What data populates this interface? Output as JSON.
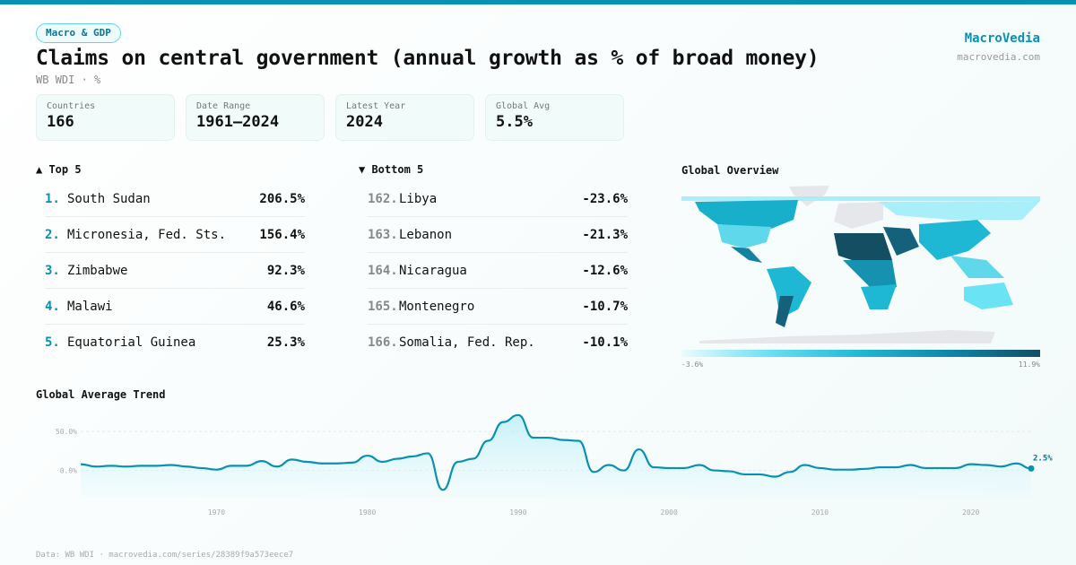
{
  "header": {
    "badge": "Macro & GDP",
    "title": "Claims on central government (annual growth as % of broad money)",
    "subtitle": "WB WDI · %",
    "brand": "MacroVedia",
    "brand_url": "macrovedia.com"
  },
  "stats": [
    {
      "label": "Countries",
      "value": "166"
    },
    {
      "label": "Date Range",
      "value": "1961–2024"
    },
    {
      "label": "Latest Year",
      "value": "2024"
    },
    {
      "label": "Global Avg",
      "value": "5.5%"
    }
  ],
  "top5": {
    "title": "▲ Top 5",
    "items": [
      {
        "rank": "1.",
        "name": "South Sudan",
        "value": "206.5%"
      },
      {
        "rank": "2.",
        "name": "Micronesia, Fed. Sts.",
        "value": "156.4%"
      },
      {
        "rank": "3.",
        "name": "Zimbabwe",
        "value": "92.3%"
      },
      {
        "rank": "4.",
        "name": "Malawi",
        "value": "46.6%"
      },
      {
        "rank": "5.",
        "name": "Equatorial Guinea",
        "value": "25.3%"
      }
    ]
  },
  "bottom5": {
    "title": "▼ Bottom 5",
    "items": [
      {
        "rank": "162.",
        "name": "Libya",
        "value": "-23.6%"
      },
      {
        "rank": "163.",
        "name": "Lebanon",
        "value": "-21.3%"
      },
      {
        "rank": "164.",
        "name": "Nicaragua",
        "value": "-12.6%"
      },
      {
        "rank": "165.",
        "name": "Montenegro",
        "value": "-10.7%"
      },
      {
        "rank": "166.",
        "name": "Somalia, Fed. Rep.",
        "value": "-10.1%"
      }
    ]
  },
  "map": {
    "title": "Global Overview",
    "legend_min": "-3.6%",
    "legend_max": "11.9%"
  },
  "colors": {
    "accent": "#0891b2",
    "dark": "#134e63"
  },
  "chart_data": {
    "type": "area",
    "title": "Global Average Trend",
    "x_start": 1961,
    "x_end": 2024,
    "values": [
      8,
      5,
      6,
      5,
      6,
      6,
      7,
      5,
      3,
      1,
      6,
      6,
      12,
      5,
      14,
      11,
      9,
      9,
      10,
      19,
      11,
      15,
      18,
      22,
      -25,
      11,
      15,
      38,
      62,
      71,
      42,
      42,
      39,
      38,
      -2,
      7,
      0,
      27,
      4,
      3,
      3,
      7,
      0,
      -1,
      -5,
      -5,
      -8,
      -2,
      7,
      3,
      1,
      1,
      2,
      4,
      4,
      7,
      3,
      3,
      3,
      8,
      7,
      5,
      9,
      2.5
    ],
    "y_ticks": [
      {
        "v": 0,
        "label": "0.0%"
      },
      {
        "v": 50,
        "label": "50.0%"
      }
    ],
    "x_ticks": [
      {
        "v": 1970,
        "label": "1970"
      },
      {
        "v": 1980,
        "label": "1980"
      },
      {
        "v": 1990,
        "label": "1990"
      },
      {
        "v": 2000,
        "label": "2000"
      },
      {
        "v": 2010,
        "label": "2010"
      },
      {
        "v": 2020,
        "label": "2020"
      }
    ],
    "ylim": [
      -35,
      80
    ],
    "last_label": "2.5%"
  },
  "footer": "Data: WB WDI · macrovedia.com/series/28389f9a573eece7"
}
